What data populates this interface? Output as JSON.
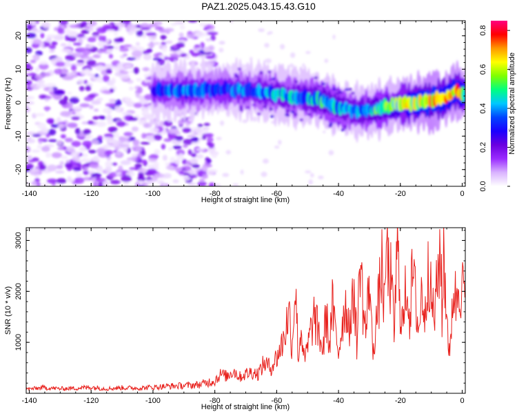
{
  "title": "PAZ1.2025.043.15.43.G10",
  "chart_data": [
    {
      "type": "heatmap",
      "panel": "spectrogram",
      "xlabel": "Height of straight line (km)",
      "ylabel": "Frequency (Hz)",
      "xlim": [
        -141,
        1
      ],
      "ylim": [
        -25,
        24.5
      ],
      "xticks": [
        -140,
        -120,
        -100,
        -80,
        -60,
        -40,
        -20,
        0
      ],
      "yticks": [
        -20,
        -10,
        0,
        10,
        20
      ],
      "colorbar": {
        "label": "Normalized spectral amplitude",
        "range": [
          0,
          0.85
        ],
        "ticks": [
          0.0,
          0.2,
          0.4,
          0.6,
          0.8
        ],
        "colors": [
          "#ffffff",
          "#d9b3ff",
          "#9a2cff",
          "#6a00e0",
          "#1a00ff",
          "#0044ff",
          "#00c8ff",
          "#00ff80",
          "#7fff00",
          "#ffff00",
          "#ff9900",
          "#ff0000",
          "#ff0080"
        ]
      },
      "ridge": {
        "description_points_x": [
          -100,
          -90,
          -80,
          -72,
          -66,
          -60,
          -55,
          -50,
          -45,
          -40,
          -35,
          -30,
          -25,
          -20,
          -15,
          -10,
          -5,
          -2,
          1
        ],
        "frequency_hz": [
          3.5,
          3.5,
          4,
          3.8,
          3.5,
          2.5,
          2,
          1.5,
          0.5,
          -1.5,
          -2.5,
          -2.5,
          -1.5,
          -0.5,
          0,
          0.5,
          1.5,
          3.5,
          2.5
        ],
        "peak_amplitude": [
          0.35,
          0.4,
          0.35,
          0.4,
          0.4,
          0.45,
          0.45,
          0.45,
          0.5,
          0.5,
          0.45,
          0.5,
          0.55,
          0.6,
          0.7,
          0.8,
          0.7,
          0.75,
          0.6
        ]
      },
      "noise_region_x": [
        -141,
        -80
      ]
    },
    {
      "type": "line",
      "panel": "snr",
      "xlabel": "Height of straight line (km)",
      "ylabel": "SNR (10 * v/v)",
      "xlim": [
        -141,
        1
      ],
      "ylim": [
        0,
        3250
      ],
      "xticks": [
        -140,
        -120,
        -100,
        -80,
        -60,
        -40,
        -20,
        0
      ],
      "yticks": [
        1000,
        2000,
        3000
      ],
      "series": [
        {
          "color": "#e8201c",
          "x": [
            -141,
            -135,
            -130,
            -125,
            -120,
            -115,
            -110,
            -105,
            -100,
            -95,
            -90,
            -85,
            -80,
            -78,
            -76,
            -74,
            -72,
            -70,
            -68,
            -66,
            -64,
            -62,
            -60,
            -58,
            -56,
            -55,
            -54,
            -53,
            -52,
            -51,
            -50,
            -48,
            -46,
            -45,
            -44,
            -43,
            -42,
            -41,
            -40,
            -38,
            -36,
            -35,
            -34,
            -33,
            -32,
            -31,
            -30,
            -29,
            -28,
            -27,
            -26,
            -25,
            -24.5,
            -24,
            -23,
            -22,
            -21,
            -20,
            -19,
            -18,
            -17,
            -16,
            -15,
            -14,
            -13,
            -12,
            -11,
            -10,
            -9,
            -8,
            -7,
            -6.5,
            -6,
            -5,
            -4,
            -3,
            -2,
            -1,
            0,
            1
          ],
          "y": [
            80,
            110,
            90,
            100,
            120,
            90,
            110,
            100,
            120,
            140,
            150,
            170,
            250,
            380,
            330,
            450,
            320,
            380,
            420,
            380,
            600,
            500,
            700,
            1000,
            1600,
            900,
            2250,
            700,
            1300,
            600,
            900,
            1500,
            1100,
            800,
            1600,
            900,
            1700,
            1200,
            800,
            1750,
            1300,
            2100,
            900,
            2800,
            1600,
            1200,
            2400,
            800,
            1300,
            1800,
            2500,
            1500,
            3200,
            2400,
            2200,
            1200,
            2900,
            1700,
            1300,
            2300,
            1500,
            2400,
            1800,
            1200,
            2100,
            1400,
            2700,
            1800,
            1500,
            2200,
            3000,
            1300,
            2800,
            1600,
            600,
            2100,
            1800,
            2300,
            2000,
            2100
          ]
        }
      ]
    }
  ]
}
